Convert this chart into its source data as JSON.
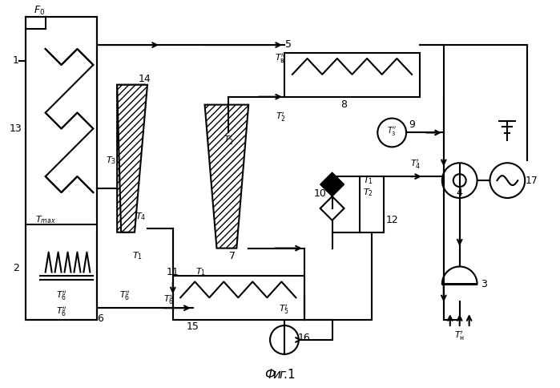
{
  "title": "Фиг.1",
  "bg_color": "#ffffff",
  "line_color": "#000000",
  "fig_width": 6.99,
  "fig_height": 4.84,
  "dpi": 100
}
